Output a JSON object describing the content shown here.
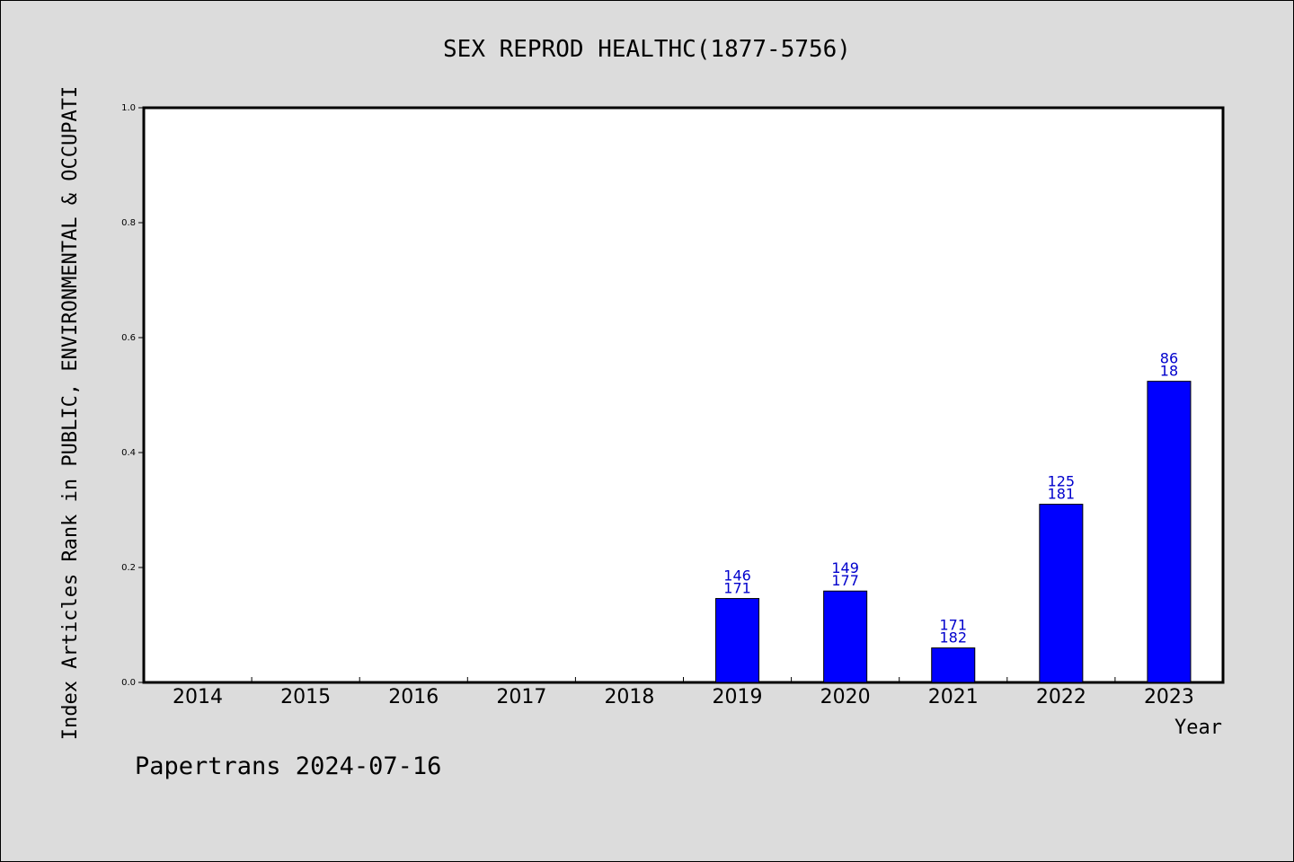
{
  "chart_data": {
    "type": "bar",
    "title": "SEX REPROD HEALTHC(1877-5756)",
    "xlabel": "Year",
    "ylabel": "Index Articles Rank in PUBLIC, ENVIRONMENTAL & OCCUPATI",
    "ylim": [
      0,
      1.0
    ],
    "yticks": [
      "0.0",
      "0.2",
      "0.4",
      "0.6",
      "0.8",
      "1.0"
    ],
    "categories": [
      "2014",
      "2015",
      "2016",
      "2017",
      "2018",
      "2019",
      "2020",
      "2021",
      "2022",
      "2023"
    ],
    "values": [
      null,
      null,
      null,
      null,
      null,
      0.146,
      0.159,
      0.06,
      0.31,
      0.524
    ],
    "labels_top": [
      "",
      "",
      "",
      "",
      "",
      "146",
      "149",
      "171",
      "125",
      "86"
    ],
    "labels_bottom": [
      "",
      "",
      "",
      "",
      "",
      "171",
      "177",
      "182",
      "181",
      "18"
    ],
    "bar_color": "#0000ff",
    "label_color": "#0000cc",
    "grid": false,
    "legend": "none"
  },
  "footer": {
    "text": "Papertrans 2024-07-16"
  }
}
